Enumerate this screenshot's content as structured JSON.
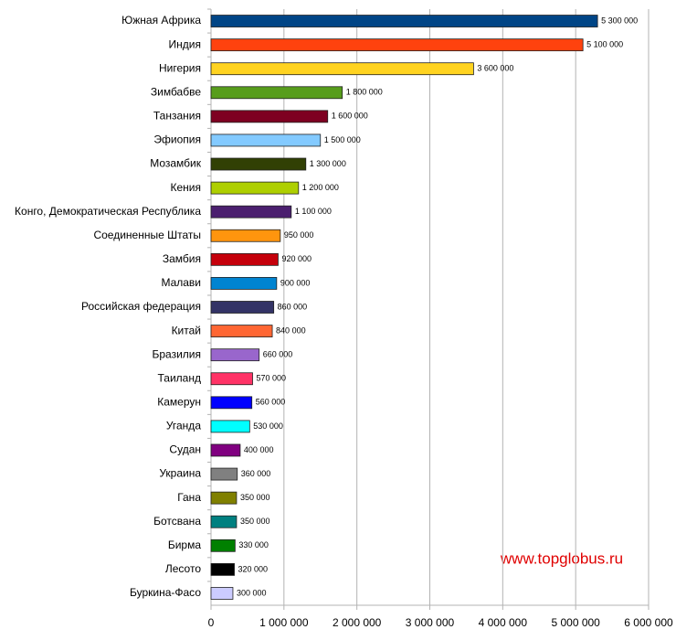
{
  "chart_data": {
    "type": "bar",
    "orientation": "horizontal",
    "categories": [
      "Южная Африка",
      "Индия",
      "Нигерия",
      "Зимбабве",
      "Танзания",
      "Эфиопия",
      "Мозамбик",
      "Кения",
      "Конго, Демократическая Республика",
      "Соединенные Штаты",
      "Замбия",
      "Малави",
      "Российская федерация",
      "Китай",
      "Бразилия",
      "Таиланд",
      "Камерун",
      "Уганда",
      "Судан",
      "Украина",
      "Гана",
      "Ботсвана",
      "Бирма",
      "Лесото",
      "Буркина-Фасо"
    ],
    "values": [
      5300000,
      5100000,
      3600000,
      1800000,
      1600000,
      1500000,
      1300000,
      1200000,
      1100000,
      950000,
      920000,
      900000,
      860000,
      840000,
      660000,
      570000,
      560000,
      530000,
      400000,
      360000,
      350000,
      350000,
      330000,
      320000,
      300000
    ],
    "value_labels": [
      "5 300 000",
      "5 100 000",
      "3 600 000",
      "1 800 000",
      "1 600 000",
      "1 500 000",
      "1 300 000",
      "1 200 000",
      "1 100 000",
      "950 000",
      "920 000",
      "900 000",
      "860 000",
      "840 000",
      "660 000",
      "570 000",
      "560 000",
      "530 000",
      "400 000",
      "360 000",
      "350 000",
      "350 000",
      "330 000",
      "320 000",
      "300 000"
    ],
    "colors": [
      "#004586",
      "#ff420e",
      "#ffd320",
      "#579d1c",
      "#7e0021",
      "#83caff",
      "#314004",
      "#aecf00",
      "#4b1f6f",
      "#ff950e",
      "#c5000b",
      "#0084d1",
      "#333366",
      "#ff6633",
      "#9966cc",
      "#ff3366",
      "#0000ff",
      "#00ffff",
      "#800080",
      "#808080",
      "#808000",
      "#008080",
      "#008000",
      "#000000",
      "#ccccff"
    ],
    "xlim": [
      0,
      6000000
    ],
    "xticks": [
      0,
      {
        "value": 1000000,
        "label": "1 000 000"
      },
      {
        "value": 2000000,
        "label": "2 000 000"
      },
      {
        "value": 3000000,
        "label": "3 000 000"
      },
      {
        "value": 4000000,
        "label": "4 000 000"
      },
      {
        "value": 5000000,
        "label": "5 000 000"
      },
      {
        "value": 6000000,
        "label": "6 000 000"
      }
    ],
    "grid": true,
    "annotation": "www.topglobus.ru"
  }
}
